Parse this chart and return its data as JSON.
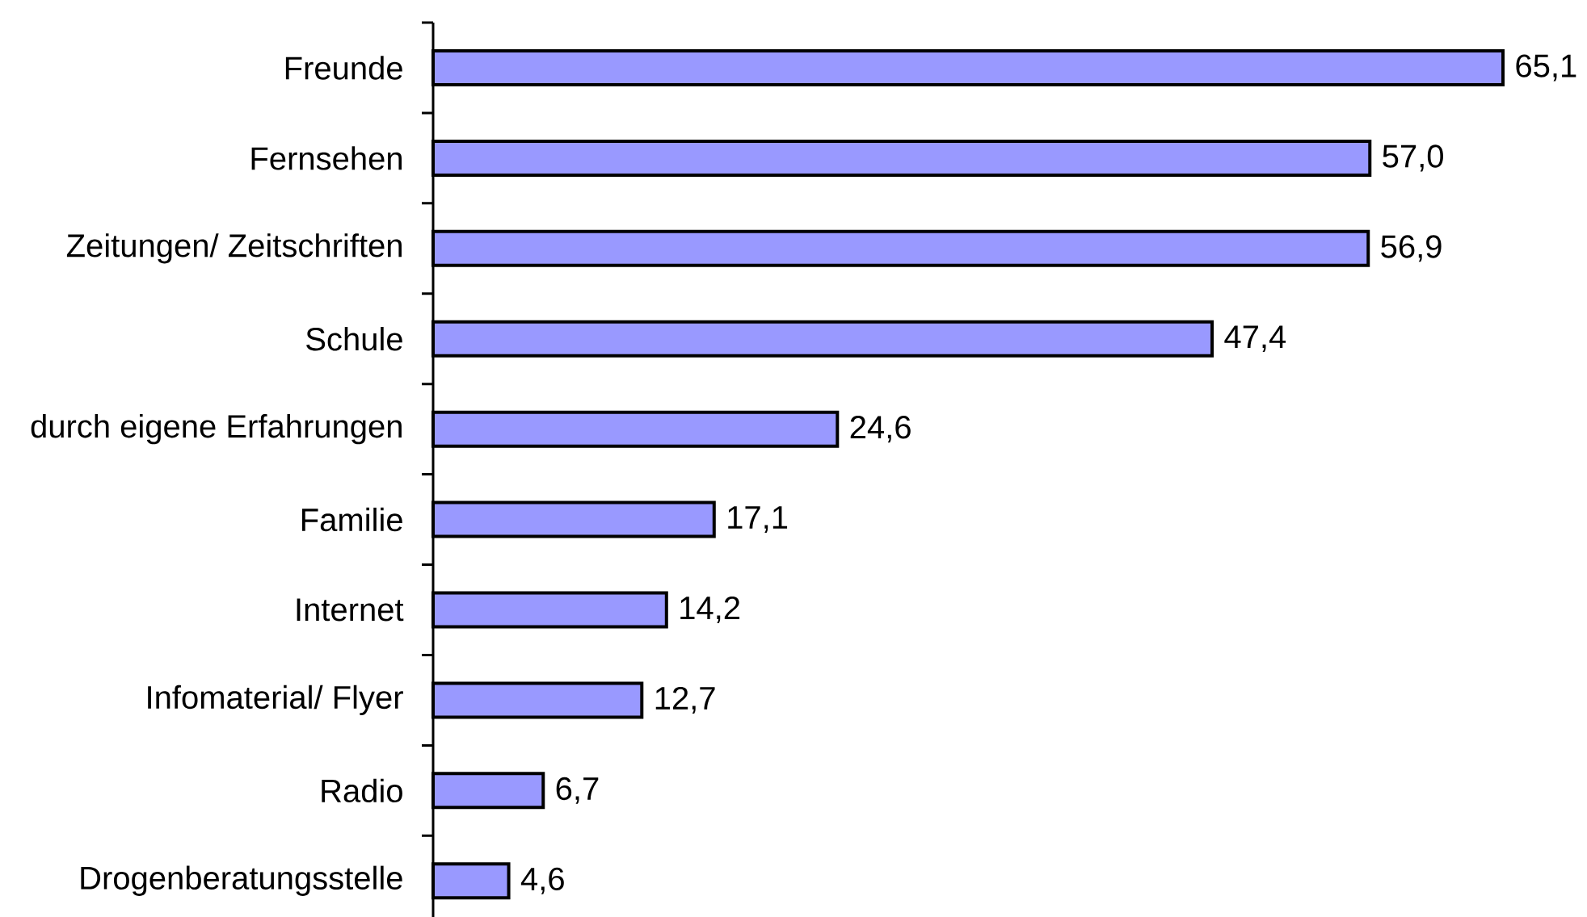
{
  "chart_data": {
    "type": "bar",
    "orientation": "horizontal",
    "categories": [
      "Freunde",
      "Fernsehen",
      "Zeitungen/ Zeitschriften",
      "Schule",
      "durch eigene Erfahrungen",
      "Familie",
      "Internet",
      "Infomaterial/ Flyer",
      "Radio",
      "Drogenberatungsstelle"
    ],
    "values": [
      65.1,
      57.0,
      56.9,
      47.4,
      24.6,
      17.1,
      14.2,
      12.7,
      6.7,
      4.6
    ],
    "value_labels": [
      "65,1",
      "57,0",
      "56,9",
      "47,4",
      "24,6",
      "17,1",
      "14,2",
      "12,7",
      "6,7",
      "4,6"
    ],
    "color": "#9999ff"
  }
}
